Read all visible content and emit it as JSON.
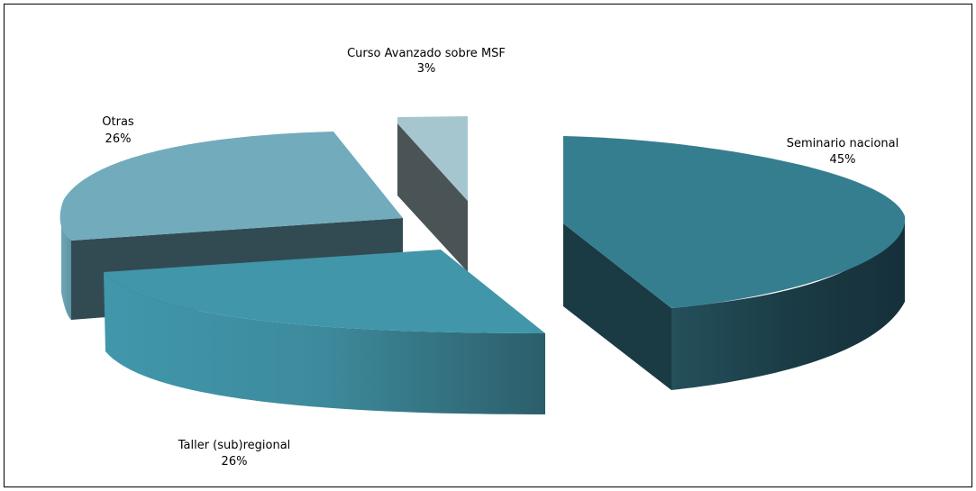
{
  "chart_data": {
    "type": "pie",
    "style": "3d-exploded",
    "slices": [
      {
        "label": "Seminario nacional",
        "pct_label": "45%",
        "value": 45,
        "color": "#357E90"
      },
      {
        "label": "Taller (sub)regional",
        "pct_label": "26%",
        "value": 26,
        "color": "#4196AA"
      },
      {
        "label": "Otras",
        "pct_label": "26%",
        "value": 26,
        "color": "#72ABBC"
      },
      {
        "label": "Curso Avanzado sobre MSF",
        "pct_label": "3%",
        "value": 3,
        "color": "#A6C6CF"
      }
    ]
  }
}
